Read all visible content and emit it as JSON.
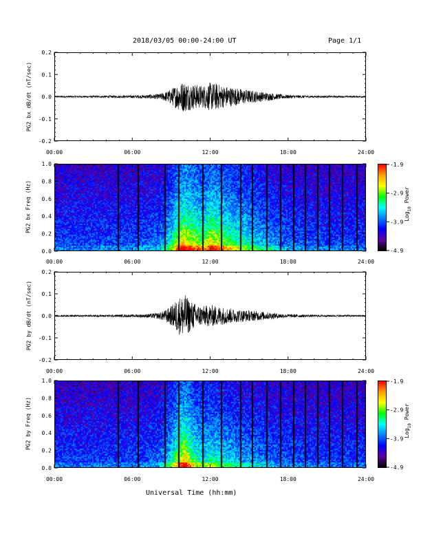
{
  "header": {
    "title": "2018/03/05  00:00-24:00 UT",
    "page": "Page 1/1"
  },
  "footer": {
    "xlabel": "Universal Time (hh:mm)"
  },
  "chart_data": [
    {
      "type": "line",
      "ylabel": "PG2 bx dB/dt (nT/sec)",
      "xlim": [
        "00:00",
        "24:00"
      ],
      "xticks": [
        "00:00",
        "06:00",
        "12:00",
        "18:00",
        "24:00"
      ],
      "ylim": [
        -0.2,
        0.2
      ],
      "yticks": [
        "0.2",
        "0.1",
        "0.0",
        "-0.1",
        "-0.2"
      ],
      "envelope_hours": [
        0,
        2,
        4,
        6,
        7,
        8,
        8.5,
        9,
        9.5,
        10,
        10.5,
        11,
        11.5,
        12,
        12.5,
        13,
        13.5,
        14,
        15,
        16,
        17,
        18,
        20,
        22,
        24
      ],
      "envelope_amplitude": [
        0.004,
        0.004,
        0.005,
        0.006,
        0.008,
        0.012,
        0.02,
        0.035,
        0.06,
        0.07,
        0.06,
        0.055,
        0.05,
        0.065,
        0.06,
        0.05,
        0.045,
        0.04,
        0.03,
        0.022,
        0.014,
        0.008,
        0.005,
        0.004,
        0.004
      ]
    },
    {
      "type": "heatmap",
      "ylabel": "PG2 bx Freq (Hz)",
      "xlim": [
        "00:00",
        "24:00"
      ],
      "xticks": [
        "00:00",
        "06:00",
        "12:00",
        "18:00",
        "24:00"
      ],
      "ylim": [
        0.0,
        1.0
      ],
      "yticks": [
        "1.0",
        "0.8",
        "0.6",
        "0.4",
        "0.2",
        "0.0"
      ],
      "colorbar": {
        "label": "Log10 Power",
        "ticks": [
          "-1.9",
          "-2.9",
          "-3.9",
          "-4.9"
        ]
      },
      "gap_hours": [
        4.85,
        6.4,
        8.45,
        9.5,
        11.4,
        12.85,
        14.3,
        15.2,
        16.35,
        17.4,
        18.4,
        19.3,
        20.3,
        21.2,
        22.2,
        23.3
      ]
    },
    {
      "type": "line",
      "ylabel": "PG2 by dB/dt (nT/sec)",
      "xlim": [
        "00:00",
        "24:00"
      ],
      "xticks": [
        "00:00",
        "06:00",
        "12:00",
        "18:00",
        "24:00"
      ],
      "ylim": [
        -0.2,
        0.2
      ],
      "yticks": [
        "0.2",
        "0.1",
        "0.0",
        "-0.1",
        "-0.2"
      ],
      "envelope_hours": [
        0,
        2,
        4,
        6,
        7,
        8,
        8.5,
        9,
        9.5,
        10,
        10.5,
        11,
        11.5,
        12,
        12.5,
        13,
        13.5,
        14,
        15,
        16,
        17,
        18,
        20,
        22,
        24
      ],
      "envelope_amplitude": [
        0.004,
        0.004,
        0.005,
        0.006,
        0.008,
        0.014,
        0.025,
        0.045,
        0.08,
        0.1,
        0.07,
        0.05,
        0.045,
        0.05,
        0.045,
        0.04,
        0.035,
        0.03,
        0.025,
        0.02,
        0.013,
        0.008,
        0.005,
        0.004,
        0.004
      ]
    },
    {
      "type": "heatmap",
      "ylabel": "PG2 by Freq (Hz)",
      "xlim": [
        "00:00",
        "24:00"
      ],
      "xticks": [
        "00:00",
        "06:00",
        "12:00",
        "18:00",
        "24:00"
      ],
      "ylim": [
        0.0,
        1.0
      ],
      "yticks": [
        "1.0",
        "0.8",
        "0.6",
        "0.4",
        "0.2",
        "0.0"
      ],
      "colorbar": {
        "label": "Log10 Power",
        "ticks": [
          "-1.9",
          "-2.9",
          "-3.9",
          "-4.9"
        ]
      },
      "gap_hours": [
        4.85,
        6.4,
        8.45,
        9.5,
        11.4,
        12.85,
        14.3,
        15.2,
        16.35,
        17.4,
        18.4,
        19.3,
        20.3,
        21.2,
        22.2,
        23.3
      ]
    }
  ],
  "colors": {
    "colormap": [
      "#ff0000",
      "#ffa000",
      "#ffff00",
      "#00ff00",
      "#00ffff",
      "#0080ff",
      "#0000ff",
      "#6000a0",
      "#000000"
    ]
  }
}
